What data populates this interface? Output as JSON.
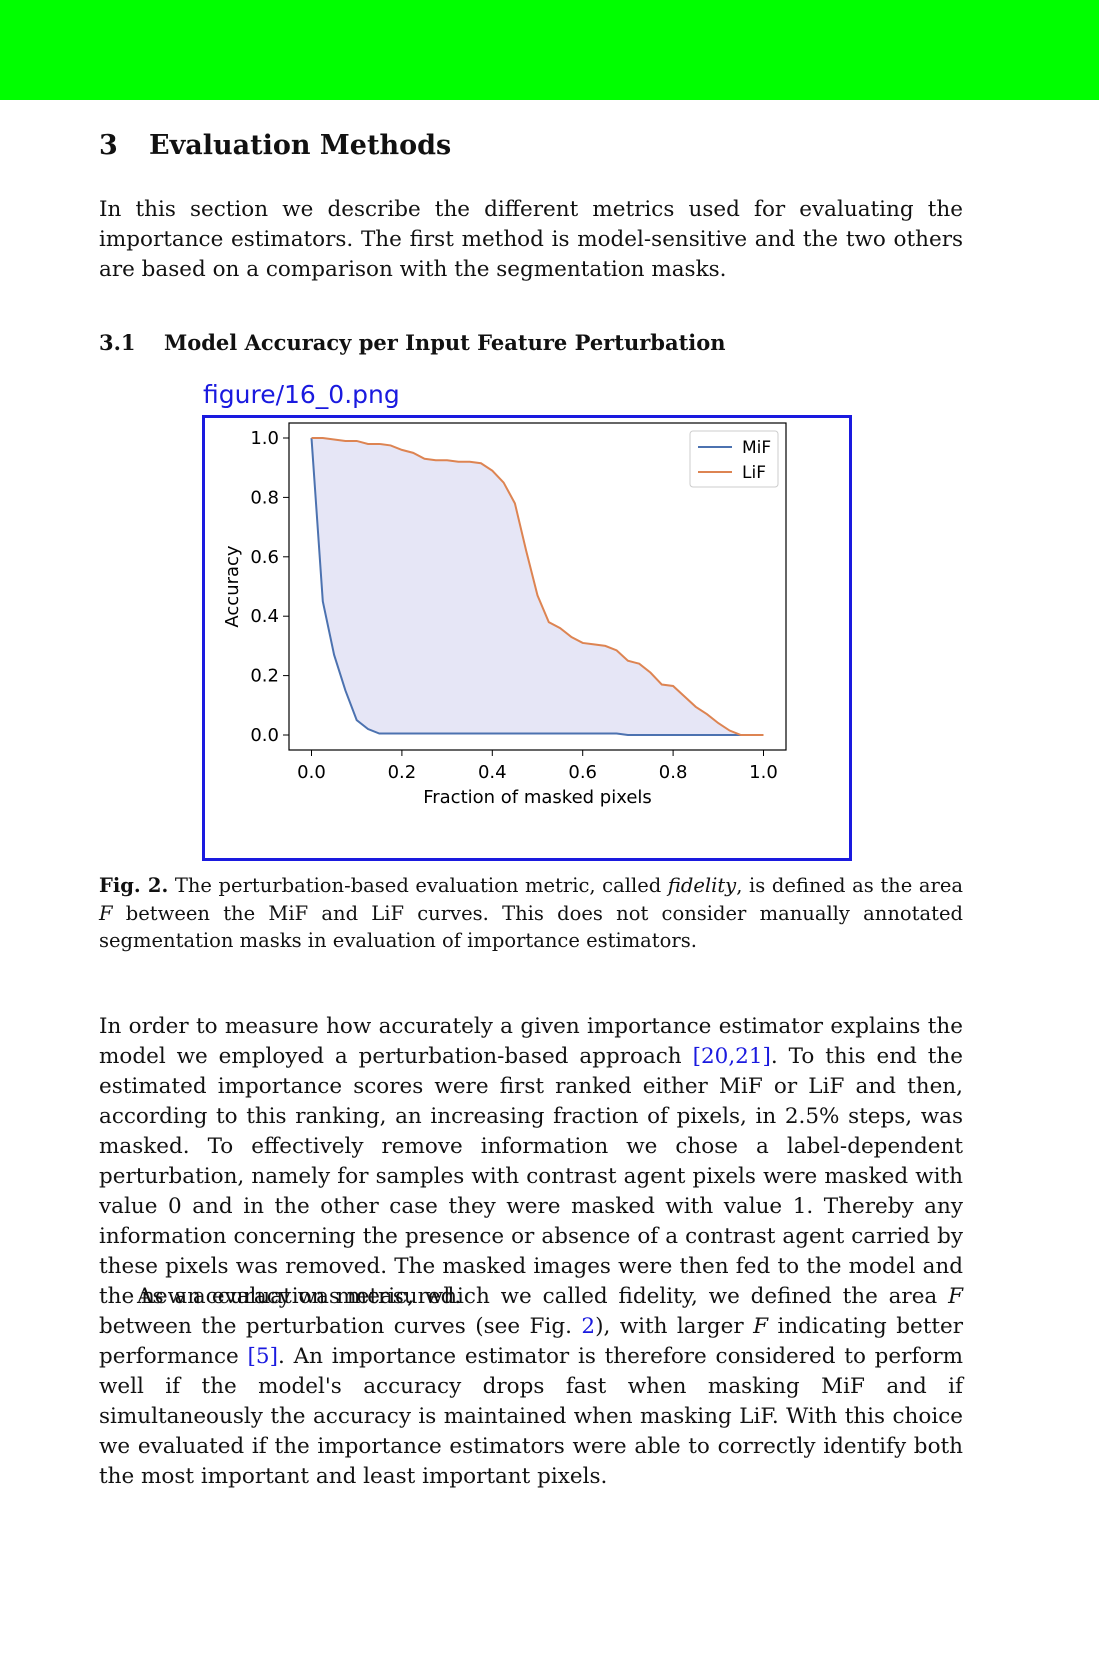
{
  "section": {
    "number": "3",
    "title": "Evaluation Methods"
  },
  "intro": "In this section we describe the different metrics used for evaluating the importance estimators. The first method is model-sensitive and the two others are based on a comparison with the segmentation masks.",
  "subsection": {
    "number": "3.1",
    "title": "Model Accuracy per Input Feature Perturbation"
  },
  "figure_label": "figure/16_0.png",
  "caption": {
    "label": "Fig. 2.",
    "text_a": " The perturbation-based evaluation metric, called ",
    "emph": "fidelity",
    "text_b": ", is defined as the area ",
    "var": "F",
    "text_c": " between the MiF and LiF curves. This does not consider manually annotated segmentation masks in evaluation of importance estimators."
  },
  "para2": {
    "a": "In order to measure how accurately a given importance estimator explains the model we employed a perturbation-based approach ",
    "cite1": "[20,21]",
    "b": ". To this end the estimated importance scores were first ranked either MiF or LiF and then, according to this ranking, an increasing fraction of pixels, in 2.5% steps, was masked. To effectively remove information we chose a label-dependent perturbation, namely for samples with contrast agent pixels were masked with value 0 and in the other case they were masked with value 1. Thereby any information concerning the presence or absence of a contrast agent carried by these pixels was removed. The masked images were then fed to the model and the new accuracy was measured."
  },
  "para3": {
    "a": "As an evaluation metric, which we called fidelity, we defined the area ",
    "var1": "F",
    "b": " between the perturbation curves (see Fig. ",
    "figref": "2",
    "c": "), with larger ",
    "var2": "F",
    "d": " indicating better performance ",
    "cite2": "[5]",
    "e": ". An importance estimator is therefore considered to perform well if the model's accuracy drops fast when masking MiF and if simultaneously the accuracy is maintained when masking LiF. With this choice we evaluated if the importance estimators were able to correctly identify both the most important and least important pixels."
  },
  "chart_data": {
    "type": "line",
    "xlabel": "Fraction of masked pixels",
    "ylabel": "Accuracy",
    "xlim": [
      0.0,
      1.0
    ],
    "ylim": [
      0.0,
      1.0
    ],
    "xticks": [
      "0.0",
      "0.2",
      "0.4",
      "0.6",
      "0.8",
      "1.0"
    ],
    "yticks": [
      "0.0",
      "0.2",
      "0.4",
      "0.6",
      "0.8",
      "1.0"
    ],
    "legend_position": "top-right",
    "fill_between": true,
    "fill_color": "#e6e6f6",
    "series": [
      {
        "name": "MiF",
        "color": "#4c72b0",
        "x": [
          0.0,
          0.025,
          0.05,
          0.075,
          0.1,
          0.125,
          0.15,
          0.175,
          0.2,
          0.3,
          0.4,
          0.5,
          0.6,
          0.675,
          0.7,
          0.725,
          0.8,
          0.9,
          1.0
        ],
        "y": [
          1.0,
          0.45,
          0.27,
          0.15,
          0.05,
          0.02,
          0.005,
          0.005,
          0.005,
          0.005,
          0.005,
          0.005,
          0.005,
          0.005,
          0.0,
          0.0,
          0.0,
          0.0,
          0.0
        ]
      },
      {
        "name": "LiF",
        "color": "#dd8452",
        "x": [
          0.0,
          0.025,
          0.05,
          0.075,
          0.1,
          0.125,
          0.15,
          0.175,
          0.2,
          0.225,
          0.25,
          0.275,
          0.3,
          0.325,
          0.35,
          0.375,
          0.4,
          0.425,
          0.45,
          0.475,
          0.5,
          0.525,
          0.55,
          0.575,
          0.6,
          0.625,
          0.65,
          0.675,
          0.7,
          0.725,
          0.75,
          0.775,
          0.8,
          0.825,
          0.85,
          0.875,
          0.9,
          0.925,
          0.95,
          0.975,
          1.0
        ],
        "y": [
          1.0,
          1.0,
          0.995,
          0.99,
          0.99,
          0.98,
          0.98,
          0.975,
          0.96,
          0.95,
          0.93,
          0.925,
          0.925,
          0.92,
          0.92,
          0.915,
          0.89,
          0.85,
          0.78,
          0.62,
          0.47,
          0.38,
          0.36,
          0.33,
          0.31,
          0.305,
          0.3,
          0.285,
          0.25,
          0.24,
          0.21,
          0.17,
          0.165,
          0.13,
          0.095,
          0.07,
          0.04,
          0.015,
          0.0,
          0.0,
          0.0
        ]
      }
    ]
  }
}
